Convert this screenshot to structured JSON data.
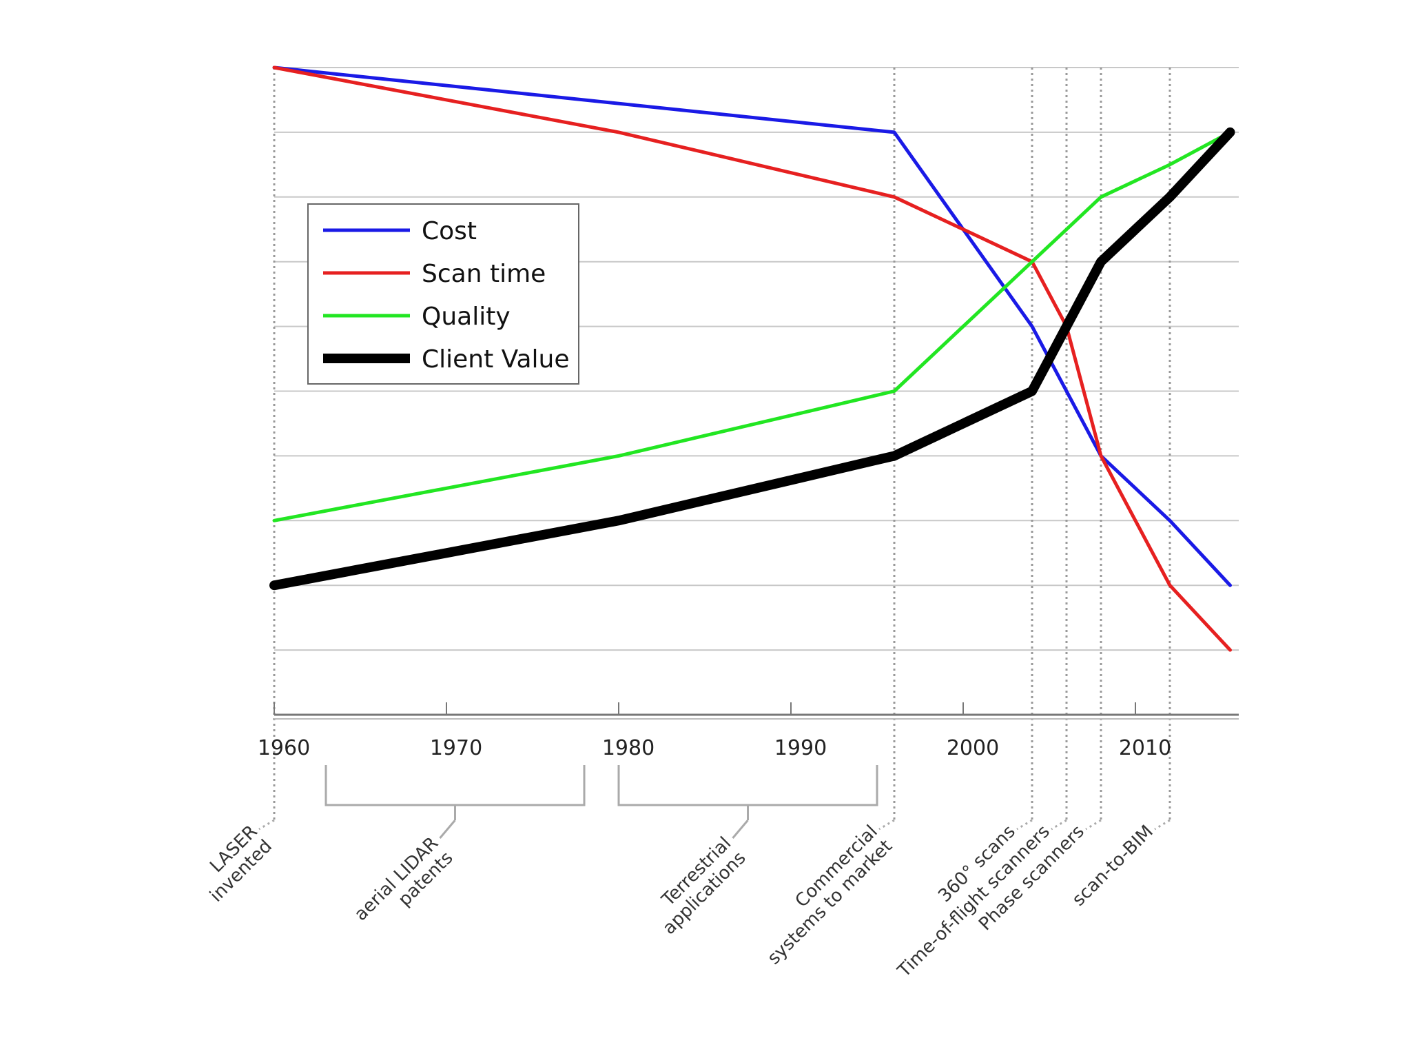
{
  "chart_data": {
    "type": "line",
    "title": "",
    "xlabel": "",
    "ylabel": "",
    "xlim": [
      1960,
      2016
    ],
    "ylim": [
      0,
      10
    ],
    "y_gridlines": [
      10,
      9,
      8,
      7,
      6,
      5,
      4,
      3,
      2,
      1
    ],
    "x_ticks": [
      1960,
      1970,
      1980,
      1990,
      2000,
      2010
    ],
    "legend": {
      "position": "upper-left",
      "entries": [
        "Cost",
        "Scan time",
        "Quality",
        "Client Value"
      ]
    },
    "series": [
      {
        "name": "Cost",
        "color": "#1a1ae6",
        "x": [
          1960,
          1996,
          2004,
          2008,
          2012,
          2015.5
        ],
        "y": [
          10,
          9,
          6,
          4,
          3,
          2
        ]
      },
      {
        "name": "Scan time",
        "color": "#e62020",
        "x": [
          1960,
          1980,
          1996,
          2004,
          2006,
          2008,
          2012,
          2015.5
        ],
        "y": [
          10,
          9,
          8,
          7,
          6,
          4,
          2,
          1
        ]
      },
      {
        "name": "Quality",
        "color": "#22e622",
        "x": [
          1960,
          1980,
          1996,
          2004,
          2008,
          2012,
          2015.5
        ],
        "y": [
          3,
          4,
          5,
          7,
          8,
          8.5,
          9
        ]
      },
      {
        "name": "Client Value",
        "color": "#000000",
        "x": [
          1960,
          1980,
          1996,
          2004,
          2008,
          2012,
          2015.5
        ],
        "y": [
          2,
          3,
          4,
          5,
          7,
          8,
          9
        ]
      }
    ],
    "events": [
      {
        "label_lines": [
          "LASER",
          "invented"
        ],
        "x": 1960,
        "vline": true
      },
      {
        "label_lines": [
          "aerial LIDAR",
          "patents"
        ],
        "range": [
          1963,
          1978
        ]
      },
      {
        "label_lines": [
          "Terrestrial",
          "applications"
        ],
        "range": [
          1980,
          1995
        ]
      },
      {
        "label_lines": [
          "Commercial",
          "systems to market"
        ],
        "x": 1996,
        "vline": true
      },
      {
        "label_lines": [
          "360° scans"
        ],
        "x": 2004,
        "vline": true
      },
      {
        "label_lines": [
          "Time-of-flight scanners"
        ],
        "x": 2006,
        "vline": true
      },
      {
        "label_lines": [
          "Phase scanners"
        ],
        "x": 2008,
        "vline": true
      },
      {
        "label_lines": [
          "scan-to-BIM"
        ],
        "x": 2012,
        "vline": true
      }
    ]
  }
}
